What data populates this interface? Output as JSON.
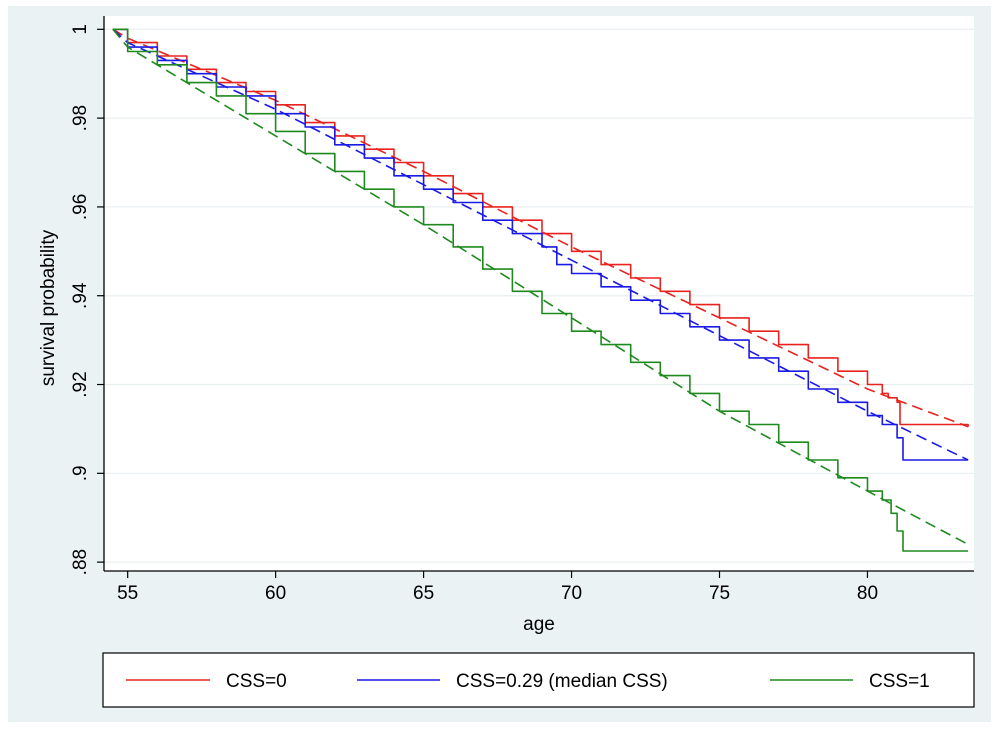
{
  "chart_data": {
    "type": "line",
    "xlabel": "age",
    "ylabel": "survival probability",
    "xlim": [
      54.2,
      83.6
    ],
    "ylim": [
      0.878,
      1.003
    ],
    "xticks": [
      55,
      60,
      65,
      70,
      75,
      80
    ],
    "xtick_labels": [
      "55",
      "60",
      "65",
      "70",
      "75",
      "80"
    ],
    "yticks": [
      0.88,
      0.9,
      0.92,
      0.94,
      0.96,
      0.98,
      1
    ],
    "ytick_labels": [
      ".88",
      ".9",
      ".92",
      ".94",
      ".96",
      ".98",
      "1"
    ],
    "grid": "horizontal",
    "legend": {
      "position": "bottom",
      "entries": [
        {
          "label": "CSS=0",
          "color": "#e8231f"
        },
        {
          "label": "CSS=0.29 (median CSS)",
          "color": "#1a1ae6"
        },
        {
          "label": "CSS=1",
          "color": "#1e8a1e"
        }
      ]
    },
    "series": [
      {
        "name": "CSS=0",
        "color": "#e8231f",
        "style": "step",
        "x": [
          54.5,
          55,
          56,
          57,
          58,
          59,
          60,
          61,
          62,
          63,
          64,
          65,
          66,
          67,
          68,
          69,
          70,
          71,
          72,
          73,
          74,
          75,
          76,
          77,
          78,
          79,
          80,
          80.5,
          80.7,
          81.0,
          81.1,
          83.4
        ],
        "y": [
          1.0,
          0.997,
          0.994,
          0.991,
          0.988,
          0.986,
          0.983,
          0.979,
          0.976,
          0.973,
          0.97,
          0.967,
          0.963,
          0.96,
          0.957,
          0.954,
          0.95,
          0.947,
          0.944,
          0.941,
          0.938,
          0.935,
          0.932,
          0.929,
          0.926,
          0.923,
          0.92,
          0.918,
          0.917,
          0.916,
          0.911,
          0.9105
        ]
      },
      {
        "name": "CSS=0",
        "color": "#e8231f",
        "style": "dashed",
        "x": [
          54.5,
          55,
          60,
          65,
          70,
          75,
          80,
          83.4
        ],
        "y": [
          1.0,
          0.998,
          0.984,
          0.968,
          0.951,
          0.935,
          0.919,
          0.9105
        ]
      },
      {
        "name": "CSS=0.29 (median CSS)",
        "color": "#1a1ae6",
        "style": "step",
        "x": [
          54.5,
          55,
          56,
          57,
          58,
          59,
          60,
          61,
          62,
          63,
          64,
          65,
          66,
          67,
          68,
          69,
          69.5,
          70,
          71,
          72,
          73,
          74,
          75,
          76,
          77,
          78,
          79,
          80,
          80.5,
          81.0,
          81.2,
          83.4
        ],
        "y": [
          1.0,
          0.996,
          0.993,
          0.99,
          0.987,
          0.985,
          0.981,
          0.978,
          0.974,
          0.971,
          0.967,
          0.964,
          0.961,
          0.957,
          0.954,
          0.951,
          0.947,
          0.945,
          0.942,
          0.939,
          0.936,
          0.933,
          0.93,
          0.926,
          0.923,
          0.919,
          0.916,
          0.913,
          0.911,
          0.908,
          0.903,
          0.903
        ]
      },
      {
        "name": "CSS=0.29 (median CSS)",
        "color": "#1a1ae6",
        "style": "dashed",
        "x": [
          54.5,
          55,
          60,
          65,
          70,
          75,
          80,
          83.4
        ],
        "y": [
          1.0,
          0.997,
          0.982,
          0.965,
          0.948,
          0.931,
          0.914,
          0.903
        ]
      },
      {
        "name": "CSS=1",
        "color": "#1e8a1e",
        "style": "step",
        "x": [
          54.5,
          55,
          56,
          57,
          58,
          59,
          60,
          61,
          62,
          63,
          64,
          65,
          66,
          67,
          68,
          69,
          70,
          71,
          72,
          73,
          74,
          75,
          76,
          77,
          78,
          79,
          80,
          80.5,
          80.8,
          81.0,
          81.2,
          83.4
        ],
        "y": [
          1.0,
          0.995,
          0.992,
          0.988,
          0.985,
          0.981,
          0.977,
          0.972,
          0.968,
          0.964,
          0.96,
          0.956,
          0.951,
          0.946,
          0.941,
          0.936,
          0.932,
          0.929,
          0.925,
          0.922,
          0.918,
          0.914,
          0.911,
          0.907,
          0.903,
          0.899,
          0.896,
          0.894,
          0.891,
          0.887,
          0.8825,
          0.8825
        ]
      },
      {
        "name": "CSS=1",
        "color": "#1e8a1e",
        "style": "dashed",
        "x": [
          54.5,
          55,
          60,
          65,
          70,
          75,
          80,
          83.4
        ],
        "y": [
          1.0,
          0.996,
          0.976,
          0.956,
          0.935,
          0.914,
          0.896,
          0.884
        ]
      }
    ]
  }
}
